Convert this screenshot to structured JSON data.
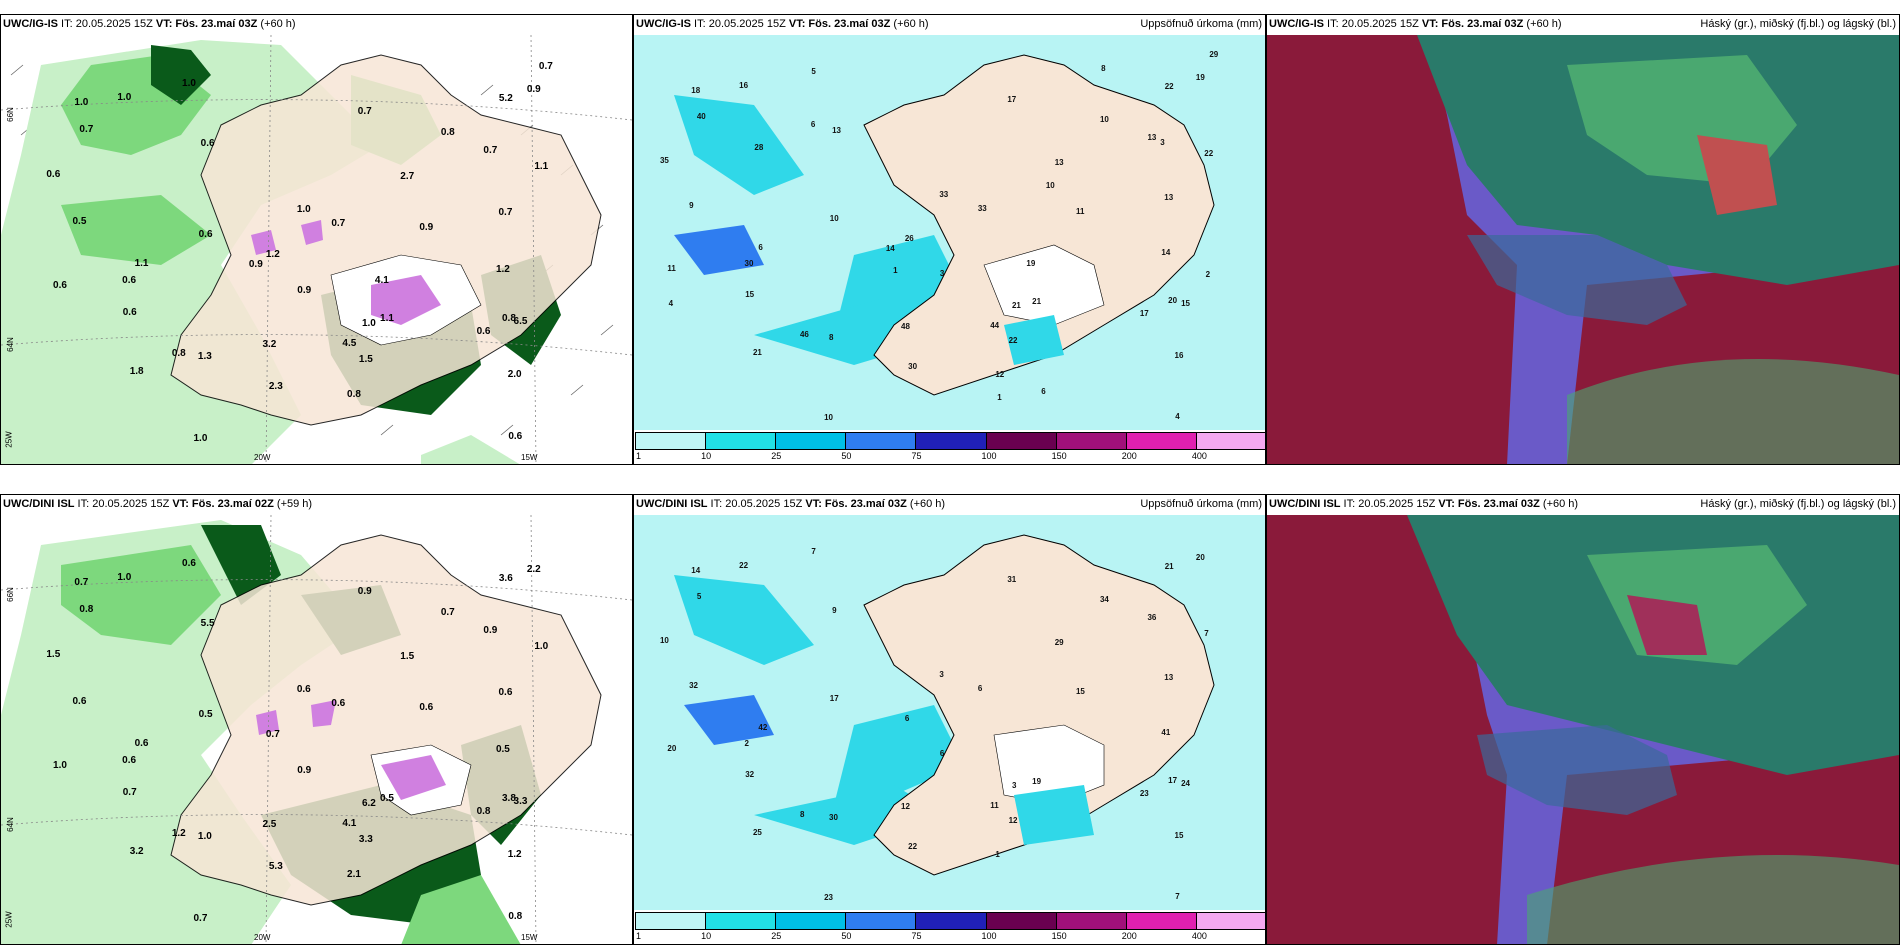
{
  "panels": {
    "p1": {
      "title_model": "UWC/IG-IS",
      "title_it": " IT: 20.05.2025 15Z ",
      "title_vt_label": "VT: ",
      "title_vt": "Fös. 23.maí 03Z",
      "title_lead": " (+60 h)"
    },
    "p2": {
      "title_model": "UWC/IG-IS",
      "title_it": " IT: 20.05.2025 15Z ",
      "title_vt_label": "VT: ",
      "title_vt": "Fös. 23.maí 03Z",
      "title_lead": " (+60 h)",
      "right_title": "Uppsöfnuð úrkoma (mm)"
    },
    "p3": {
      "title_model": "UWC/IG-IS",
      "title_it": " IT: 20.05.2025 15Z ",
      "title_vt_label": "VT: ",
      "title_vt": "Fös. 23.maí 03Z",
      "title_lead": " (+60 h)",
      "right_title": "Háský (gr.), miðský (fj.bl.) og lágský (bl.)"
    },
    "p4": {
      "title_model": "UWC/DINI ISL",
      "title_it": " IT: 20.05.2025 15Z ",
      "title_vt_label": "VT: ",
      "title_vt": "Fös. 23.maí 02Z",
      "title_lead": " (+59 h)"
    },
    "p5": {
      "title_model": "UWC/DINI ISL",
      "title_it": " IT: 20.05.2025 15Z ",
      "title_vt_label": "VT: ",
      "title_vt": "Fös. 23.maí 03Z",
      "title_lead": " (+60 h)",
      "right_title": "Uppsöfnuð úrkoma (mm)"
    },
    "p6": {
      "title_model": "UWC/DINI ISL",
      "title_it": " IT: 20.05.2025 15Z ",
      "title_vt_label": "VT: ",
      "title_vt": "Fös. 23.maí 03Z",
      "title_lead": " (+60 h)",
      "right_title": "Háský (gr.), miðský (fj.bl.) og lágský (bl.)"
    }
  },
  "axis_labels": {
    "lat66": "66N",
    "lat64": "64N",
    "lon25": "25W",
    "lon20": "20W",
    "lon15": "15W"
  },
  "legend": {
    "ticks": [
      "1",
      "10",
      "25",
      "50",
      "75",
      "100",
      "150",
      "200",
      "400"
    ],
    "colors": [
      "#bff6f6",
      "#22e0e6",
      "#00bfe6",
      "#2f7df0",
      "#2020b8",
      "#6a0050",
      "#a0107a",
      "#e020b0",
      "#f4a8f0"
    ]
  },
  "colors": {
    "land": "#f7e6d6",
    "precip_light": "#c8f0c8",
    "precip_med": "#7dd87d",
    "precip_dark": "#0a5a1a",
    "accum_bg": "#b8f4f4",
    "accum_mid": "#30d8e8",
    "cloud_low": "#8a1a3a",
    "cloud_mid": "#6a5ac8",
    "cloud_high": "#2a7a6a"
  },
  "p1_values": [
    "0.9",
    "0.8",
    "0.6",
    "1.8",
    "2.0",
    "2.3",
    "1.0",
    "0.6",
    "0.8",
    "1.1",
    "0.7",
    "1.5",
    "0.6",
    "1.2",
    "0.7",
    "0.6",
    "1.0",
    "0.6",
    "0.7",
    "1.0",
    "1.3",
    "0.5",
    "0.8",
    "1.1",
    "0.6",
    "0.9",
    "1.0",
    "0.9",
    "1.1",
    "6.5",
    "5.2",
    "4.5",
    "3.2",
    "2.7",
    "0.7",
    "0.6",
    "1.0",
    "0.7",
    "1.2",
    "1.0",
    "0.6",
    "0.8",
    "0.9",
    "4.1",
    "0.7"
  ],
  "p4_values": [
    "2.2",
    "3.8",
    "0.8",
    "3.2",
    "1.2",
    "5.3",
    "0.7",
    "1.5",
    "1.2",
    "1.0",
    "0.6",
    "3.3",
    "0.7",
    "0.5",
    "0.9",
    "1.0",
    "0.7",
    "0.5",
    "0.6",
    "1.0",
    "1.0",
    "0.6",
    "0.7",
    "0.6",
    "0.8",
    "0.9",
    "0.6",
    "0.6",
    "0.5",
    "3.3",
    "3.6",
    "4.1",
    "2.5",
    "1.5",
    "0.9",
    "0.6",
    "0.6",
    "0.8",
    "0.7",
    "6.2",
    "5.5",
    "2.1"
  ],
  "p2_values": [
    "19",
    "20",
    "17",
    "21",
    "16",
    "30",
    "18",
    "35",
    "46",
    "22",
    "33",
    "22",
    "15",
    "14",
    "13",
    "11",
    "10",
    "10",
    "13",
    "16",
    "8",
    "9",
    "10",
    "6",
    "4",
    "3",
    "5",
    "11",
    "21",
    "15",
    "22",
    "44",
    "48",
    "13",
    "17",
    "30",
    "33",
    "40",
    "26",
    "21",
    "13",
    "12",
    "14",
    "19",
    "29",
    "28",
    "1",
    "3",
    "6",
    "2",
    "6",
    "4",
    "1",
    "10",
    "8"
  ],
  "p5_values": [
    "20",
    "17",
    "23",
    "25",
    "15",
    "22",
    "14",
    "10",
    "8",
    "7",
    "6",
    "12",
    "32",
    "41",
    "36",
    "20",
    "23",
    "17",
    "13",
    "22",
    "30",
    "32",
    "34",
    "42",
    "7",
    "6",
    "7",
    "15",
    "19",
    "24",
    "21",
    "11",
    "12",
    "29",
    "31",
    "2",
    "3",
    "5",
    "6",
    "3",
    "9",
    "1"
  ]
}
